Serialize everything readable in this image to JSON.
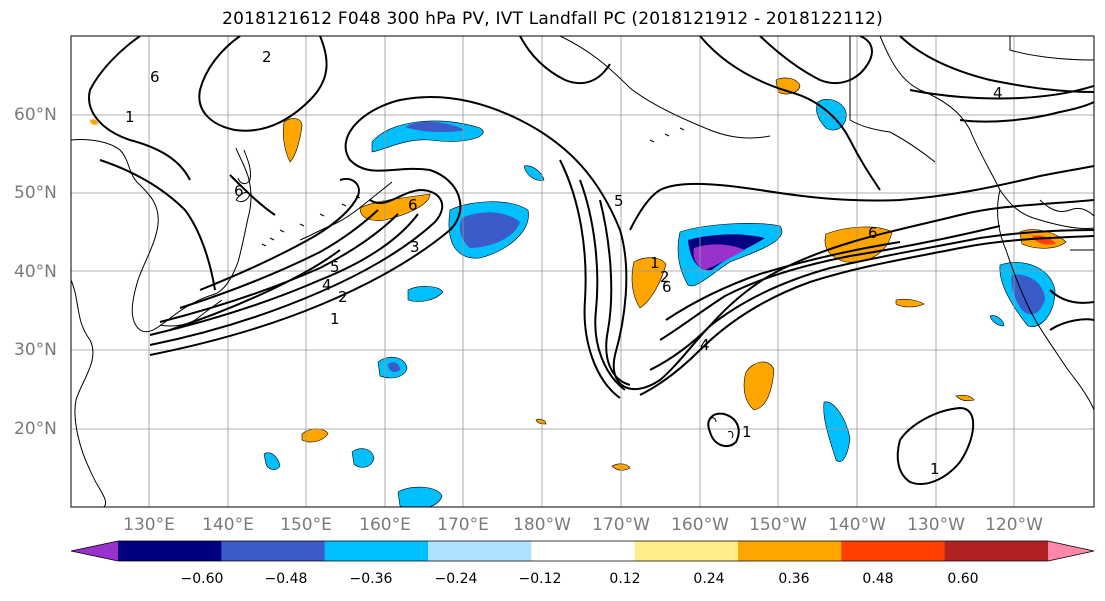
{
  "title": "2018121612 F048 300 hPa PV, IVT Landfall PC (2018121912 - 2018122112)",
  "lat_labels": [
    "60°N",
    "50°N",
    "40°N",
    "30°N",
    "20°N"
  ],
  "lon_labels": [
    "130°E",
    "140°E",
    "150°E",
    "160°E",
    "170°E",
    "180°W",
    "170°W",
    "160°W",
    "150°W",
    "140°W",
    "130°W",
    "120°W"
  ],
  "colorbar": {
    "colors": [
      "#9932CC",
      "#000080",
      "#3A5BC8",
      "#00BFFF",
      "#B0E2FF",
      "#FFFFFF",
      "#FFEE88",
      "#FFA500",
      "#FF4000",
      "#B22222",
      "#FF88AA"
    ],
    "tick_labels": [
      "−0.60",
      "−0.48",
      "−0.36",
      "−0.24",
      "−0.12",
      "0.12",
      "0.24",
      "0.36",
      "0.48",
      "0.60"
    ]
  },
  "contour_labels": [
    "6",
    "2",
    "1",
    "6",
    "6",
    "3",
    "5",
    "4",
    "2",
    "1",
    "1",
    "2",
    "6",
    "5",
    "4",
    "6",
    "1",
    "4",
    "1"
  ]
}
